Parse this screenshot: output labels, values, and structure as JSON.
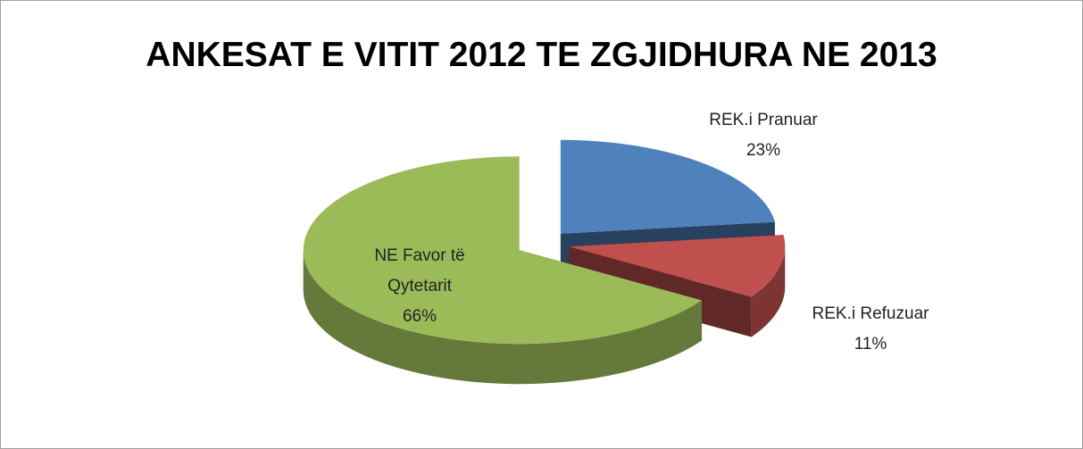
{
  "chart_data": {
    "type": "pie",
    "title": "ANKESAT E VITIT 2012 TE ZGJIDHURA NE 2013",
    "categories": [
      "REK.i Pranuar",
      "REK.i Refuzuar",
      "NE Favor të Qytetarit"
    ],
    "values": [
      23,
      11,
      66
    ],
    "value_labels": [
      "23%",
      "11%",
      "66%"
    ],
    "colors": [
      "#4f81bd",
      "#c0504d",
      "#9bbb59"
    ]
  }
}
